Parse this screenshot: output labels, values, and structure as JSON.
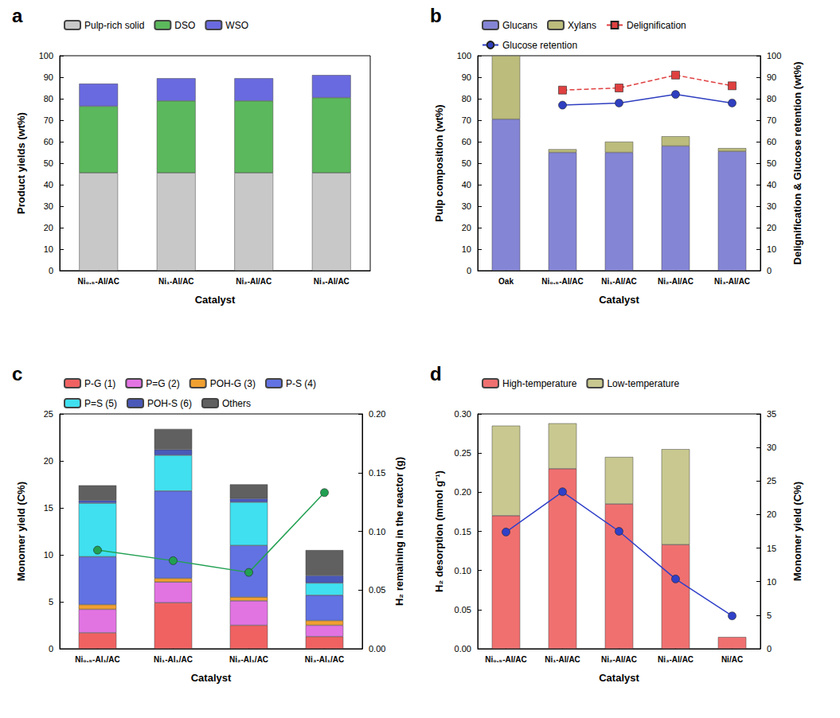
{
  "chart_data": [
    {
      "type": "bar",
      "title": "a",
      "xlabel": "Catalyst",
      "ylabel": "Product yields (wt%)",
      "categories": [
        "Ni₀.₅-Al/AC",
        "Ni₁-Al/AC",
        "Ni₂-Al/AC",
        "Ni₃-Al/AC"
      ],
      "stacked": true,
      "legend": "top",
      "grid": false,
      "ylim": [
        0,
        100
      ],
      "yticks": [
        0,
        10,
        20,
        30,
        40,
        50,
        60,
        70,
        80,
        90,
        100
      ],
      "series": [
        {
          "name": "Pulp-rich solid",
          "color": "#c8c8c8",
          "values": [
            45.5,
            45.5,
            45.5,
            45.5
          ]
        },
        {
          "name": "DSO",
          "color": "#5cb85c",
          "values": [
            31,
            33.5,
            33.5,
            35
          ]
        },
        {
          "name": "WSO",
          "color": "#6a6ae0",
          "values": [
            10.5,
            10.5,
            10.5,
            10.5
          ]
        }
      ]
    },
    {
      "type": "bar",
      "title": "b",
      "xlabel": "Catalyst",
      "ylabel": "Pulp composition (wt%)",
      "y2label": "Delignification & Glucose retention (wt%)",
      "categories": [
        "Oak",
        "Ni₀.₅-Al/AC",
        "Ni₁-Al/AC",
        "Ni₂-Al/AC",
        "Ni₃-Al/AC"
      ],
      "stacked": true,
      "legend": "top",
      "grid": false,
      "ylim": [
        0,
        100
      ],
      "yticks": [
        0,
        10,
        20,
        30,
        40,
        50,
        60,
        70,
        80,
        90,
        100
      ],
      "y2lim": [
        0,
        100
      ],
      "y2ticks": [
        0,
        10,
        20,
        30,
        40,
        50,
        60,
        70,
        80,
        90,
        100
      ],
      "series": [
        {
          "name": "Glucans",
          "color": "#8585d6",
          "values": [
            70.5,
            55,
            55,
            58,
            55.5
          ]
        },
        {
          "name": "Xylans",
          "color": "#bcbc7c",
          "values": [
            29.5,
            1.5,
            5,
            4.5,
            1.5
          ]
        },
        {
          "name": "Delignification",
          "type": "line",
          "axis": "y2",
          "color": "#e04040",
          "marker": "square",
          "line_style": "dashed",
          "values": [
            null,
            84,
            85,
            91,
            86
          ]
        },
        {
          "name": "Glucose retention",
          "type": "line",
          "axis": "y2",
          "color": "#2f3fc0",
          "marker": "circle",
          "line_style": "solid",
          "values": [
            null,
            77,
            78,
            82,
            78
          ]
        }
      ]
    },
    {
      "type": "bar",
      "title": "c",
      "xlabel": "Catalyst",
      "ylabel": "Monomer yield (C%)",
      "y2label": "H₂ remaining in the reactor (g)",
      "categories": [
        "Ni₀.₅-Al₁/AC",
        "Ni₁-Al₁/AC",
        "Ni₂-Al₁/AC",
        "Ni₃-Al₁/AC"
      ],
      "stacked": true,
      "legend": "top",
      "grid": false,
      "ylim": [
        0,
        25
      ],
      "yticks": [
        0,
        5,
        10,
        15,
        20,
        25
      ],
      "y2lim": [
        0,
        0.2
      ],
      "y2ticks": [
        {
          "value": 0,
          "label": "0.00"
        },
        {
          "value": 0.05,
          "label": "0.05"
        },
        {
          "value": 0.1,
          "label": "0.10"
        },
        {
          "value": 0.15,
          "label": "0.15"
        },
        {
          "value": 0.2,
          "label": "0.20"
        }
      ],
      "series": [
        {
          "name": "P-G (1)",
          "color": "#f06262",
          "values": [
            1.7,
            4.9,
            2.5,
            1.3
          ]
        },
        {
          "name": "P=G (2)",
          "color": "#e274e2",
          "values": [
            2.5,
            2.2,
            2.6,
            1.2
          ]
        },
        {
          "name": "POH-G (3)",
          "color": "#f0a030",
          "values": [
            0.5,
            0.4,
            0.4,
            0.5
          ]
        },
        {
          "name": "P-S (4)",
          "color": "#6272e2",
          "values": [
            5.1,
            9.3,
            5.5,
            2.7
          ]
        },
        {
          "name": "P=S (5)",
          "color": "#40e0f0",
          "values": [
            5.7,
            3.8,
            4.6,
            1.3
          ]
        },
        {
          "name": "POH-S (6)",
          "color": "#4a58b8",
          "values": [
            0.3,
            0.6,
            0.4,
            0.8
          ]
        },
        {
          "name": "Others",
          "color": "#606060",
          "values": [
            1.6,
            2.2,
            1.5,
            2.7
          ]
        },
        {
          "type": "line",
          "axis": "y2",
          "color": "#22a052",
          "marker": "circle",
          "line_style": "solid",
          "values": [
            0.084,
            0.075,
            0.065,
            0.133
          ]
        }
      ]
    },
    {
      "type": "bar",
      "title": "d",
      "xlabel": "Catalyst",
      "ylabel": "H₂ desorption (mmol g⁻¹)",
      "y2label": "Monomer yield (C%)",
      "categories": [
        "Ni₀.₅-Al/AC",
        "Ni₁-Al/AC",
        "Ni₂-Al/AC",
        "Ni₃-Al/AC",
        "Ni/AC"
      ],
      "stacked": true,
      "legend": "top",
      "grid": false,
      "ylim": [
        0,
        0.3
      ],
      "yticks": [
        {
          "value": 0,
          "label": "0.00"
        },
        {
          "value": 0.05,
          "label": "0.05"
        },
        {
          "value": 0.1,
          "label": "0.10"
        },
        {
          "value": 0.15,
          "label": "0.15"
        },
        {
          "value": 0.2,
          "label": "0.20"
        },
        {
          "value": 0.25,
          "label": "0.25"
        },
        {
          "value": 0.3,
          "label": "0.30"
        }
      ],
      "y2lim": [
        0,
        35
      ],
      "y2ticks": [
        0,
        5,
        10,
        15,
        20,
        25,
        30,
        35
      ],
      "series": [
        {
          "name": "High-temperature",
          "color": "#f07070",
          "values": [
            0.17,
            0.23,
            0.185,
            0.133,
            0.015
          ]
        },
        {
          "name": "Low-temperature",
          "color": "#c8c890",
          "values": [
            0.115,
            0.058,
            0.06,
            0.122,
            null
          ]
        },
        {
          "type": "line",
          "axis": "y2",
          "color": "#3040c8",
          "marker": "circle",
          "line_style": "solid",
          "values": [
            17.4,
            23.4,
            17.5,
            10.4,
            4.9
          ]
        }
      ]
    }
  ]
}
